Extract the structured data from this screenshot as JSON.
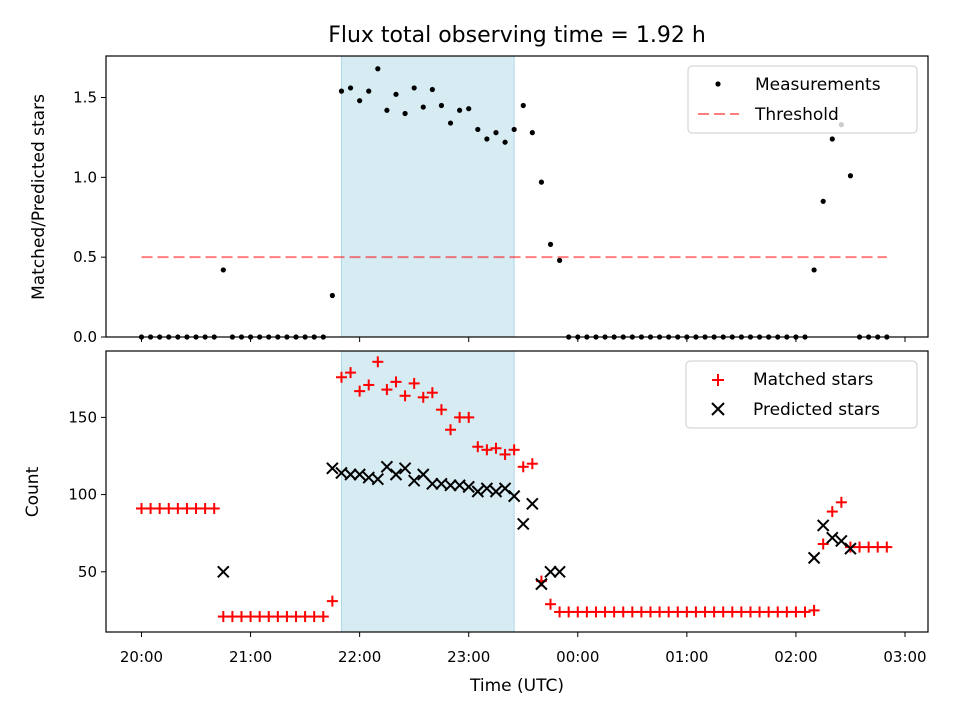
{
  "chart_data": [
    {
      "type": "scatter",
      "title": "Flux total observing time = 1.92 h",
      "ylabel": "Matched/Predicted stars",
      "xlabel": "",
      "ylim": [
        0,
        1.76
      ],
      "yticks": [
        "0.0",
        "0.5",
        "1.0",
        "1.5"
      ],
      "highlight_span": {
        "start": "21:50",
        "end": "23:25",
        "color": "#add8e6"
      },
      "legend_position": "top-right",
      "threshold": {
        "name": "Threshold",
        "value": 0.5,
        "x_start": "20:00",
        "x_end": "02:50",
        "color": "#ff0000",
        "style": "dashed"
      },
      "series": [
        {
          "name": "Measurements",
          "marker": "dot",
          "color": "#000000",
          "x": [
            "20:00",
            "20:05",
            "20:10",
            "20:15",
            "20:20",
            "20:25",
            "20:30",
            "20:35",
            "20:40",
            "20:45",
            "20:50",
            "20:55",
            "21:00",
            "21:05",
            "21:10",
            "21:15",
            "21:20",
            "21:25",
            "21:30",
            "21:35",
            "21:40",
            "21:45",
            "21:50",
            "21:55",
            "22:00",
            "22:05",
            "22:10",
            "22:15",
            "22:20",
            "22:25",
            "22:30",
            "22:35",
            "22:40",
            "22:45",
            "22:50",
            "22:55",
            "23:00",
            "23:05",
            "23:10",
            "23:15",
            "23:20",
            "23:25",
            "23:30",
            "23:35",
            "23:40",
            "23:45",
            "23:50",
            "23:55",
            "00:00",
            "00:05",
            "00:10",
            "00:15",
            "00:20",
            "00:25",
            "00:30",
            "00:35",
            "00:40",
            "00:45",
            "00:50",
            "00:55",
            "01:00",
            "01:05",
            "01:10",
            "01:15",
            "01:20",
            "01:25",
            "01:30",
            "01:35",
            "01:40",
            "01:45",
            "01:50",
            "01:55",
            "02:00",
            "02:05",
            "02:10",
            "02:15",
            "02:20",
            "02:25",
            "02:30",
            "02:35",
            "02:40",
            "02:45",
            "02:50"
          ],
          "y": [
            0,
            0,
            0,
            0,
            0,
            0,
            0,
            0,
            0,
            0.42,
            0,
            0,
            0,
            0,
            0,
            0,
            0,
            0,
            0,
            0,
            0,
            0.26,
            1.54,
            1.56,
            1.48,
            1.54,
            1.68,
            1.42,
            1.52,
            1.4,
            1.56,
            1.44,
            1.55,
            1.45,
            1.34,
            1.42,
            1.43,
            1.3,
            1.24,
            1.28,
            1.22,
            1.3,
            1.45,
            1.28,
            0.97,
            0.58,
            0.48,
            0,
            0,
            0,
            0,
            0,
            0,
            0,
            0,
            0,
            0,
            0,
            0,
            0,
            0,
            0,
            0,
            0,
            0,
            0,
            0,
            0,
            0,
            0,
            0,
            0,
            0,
            0,
            0.42,
            0.85,
            1.24,
            1.33,
            1.01,
            0,
            0,
            0,
            0
          ]
        }
      ]
    },
    {
      "type": "scatter",
      "title": "",
      "ylabel": "Count",
      "xlabel": "Time (UTC)",
      "ylim": [
        11,
        193
      ],
      "yticks": [
        "50",
        "100",
        "150"
      ],
      "xticks": [
        "20:00",
        "21:00",
        "22:00",
        "23:00",
        "00:00",
        "01:00",
        "02:00",
        "03:00"
      ],
      "highlight_span": {
        "start": "21:50",
        "end": "23:25",
        "color": "#add8e6"
      },
      "legend_position": "top-right",
      "series": [
        {
          "name": "Matched stars",
          "marker": "plus",
          "color": "#ff0000",
          "x": [
            "20:00",
            "20:05",
            "20:10",
            "20:15",
            "20:20",
            "20:25",
            "20:30",
            "20:35",
            "20:40",
            "20:45",
            "20:50",
            "20:55",
            "21:00",
            "21:05",
            "21:10",
            "21:15",
            "21:20",
            "21:25",
            "21:30",
            "21:35",
            "21:40",
            "21:45",
            "21:50",
            "21:55",
            "22:00",
            "22:05",
            "22:10",
            "22:15",
            "22:20",
            "22:25",
            "22:30",
            "22:35",
            "22:40",
            "22:45",
            "22:50",
            "22:55",
            "23:00",
            "23:05",
            "23:10",
            "23:15",
            "23:20",
            "23:25",
            "23:30",
            "23:35",
            "23:40",
            "23:45",
            "23:50",
            "23:55",
            "00:00",
            "00:05",
            "00:10",
            "00:15",
            "00:20",
            "00:25",
            "00:30",
            "00:35",
            "00:40",
            "00:45",
            "00:50",
            "00:55",
            "01:00",
            "01:05",
            "01:10",
            "01:15",
            "01:20",
            "01:25",
            "01:30",
            "01:35",
            "01:40",
            "01:45",
            "01:50",
            "01:55",
            "02:00",
            "02:05",
            "02:10",
            "02:15",
            "02:20",
            "02:25",
            "02:30",
            "02:35",
            "02:40",
            "02:45",
            "02:50"
          ],
          "y": [
            91,
            91,
            91,
            91,
            91,
            91,
            91,
            91,
            91,
            21,
            21,
            21,
            21,
            21,
            21,
            21,
            21,
            21,
            21,
            21,
            21,
            31,
            176,
            179,
            167,
            171,
            186,
            168,
            173,
            164,
            172,
            163,
            166,
            155,
            142,
            150,
            150,
            131,
            129,
            130,
            126,
            129,
            118,
            120,
            44,
            29,
            24,
            24,
            24,
            24,
            24,
            24,
            24,
            24,
            24,
            24,
            24,
            24,
            24,
            24,
            24,
            24,
            24,
            24,
            24,
            24,
            24,
            24,
            24,
            24,
            24,
            24,
            24,
            24,
            25,
            68,
            89,
            95,
            66,
            66,
            66,
            66,
            66
          ]
        },
        {
          "name": "Predicted stars",
          "marker": "x",
          "color": "#000000",
          "x": [
            "20:45",
            "21:45",
            "21:50",
            "21:55",
            "22:00",
            "22:05",
            "22:10",
            "22:15",
            "22:20",
            "22:25",
            "22:30",
            "22:35",
            "22:40",
            "22:45",
            "22:50",
            "22:55",
            "23:00",
            "23:05",
            "23:10",
            "23:15",
            "23:20",
            "23:25",
            "23:30",
            "23:35",
            "23:40",
            "23:45",
            "23:50",
            "02:10",
            "02:15",
            "02:20",
            "02:25",
            "02:30"
          ],
          "y": [
            50,
            117,
            114,
            113,
            113,
            111,
            110,
            118,
            113,
            117,
            109,
            113,
            107,
            107,
            106,
            106,
            105,
            102,
            104,
            102,
            104,
            99,
            81,
            94,
            42,
            50,
            50,
            59,
            80,
            72,
            70,
            65
          ]
        }
      ]
    }
  ]
}
